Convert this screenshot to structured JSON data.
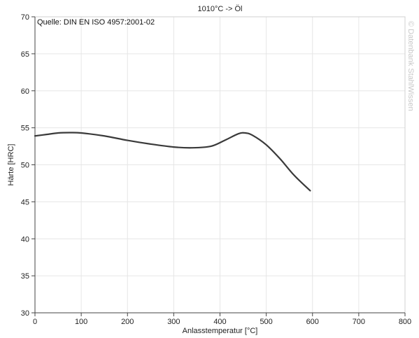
{
  "chart_data": {
    "type": "line",
    "title": "1010°C -> Öl",
    "source": "Quelle: DIN EN ISO 4957:2001-02",
    "watermark": "© Datenbank StahlWissen",
    "xlabel": "Anlasstemperatur [°C]",
    "ylabel": "Härte [HRC]",
    "xlim": [
      0,
      800
    ],
    "ylim": [
      30,
      70
    ],
    "x_ticks": [
      "0",
      "100",
      "200",
      "300",
      "400",
      "500",
      "600",
      "700",
      "800"
    ],
    "y_ticks": [
      "30",
      "35",
      "40",
      "45",
      "50",
      "55",
      "60",
      "65",
      "70"
    ],
    "grid": true,
    "series": [
      {
        "color": "#3a3a3a",
        "x": [
          0,
          25,
          50,
          75,
          100,
          150,
          200,
          250,
          300,
          340,
          380,
          410,
          440,
          455,
          470,
          500,
          530,
          560,
          595
        ],
        "y": [
          53.9,
          54.1,
          54.3,
          54.35,
          54.3,
          53.9,
          53.3,
          52.8,
          52.4,
          52.3,
          52.5,
          53.3,
          54.2,
          54.3,
          54.0,
          52.7,
          50.8,
          48.6,
          46.5
        ]
      }
    ]
  }
}
